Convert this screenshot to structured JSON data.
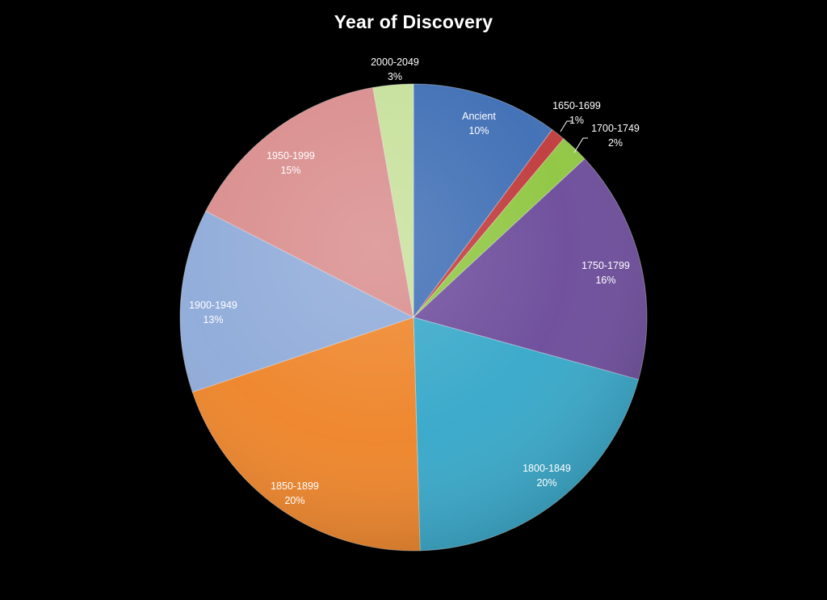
{
  "chart_data": {
    "type": "pie",
    "title": "Year of Discovery",
    "start_angle_deg": 0,
    "direction": "clockwise",
    "slices": [
      {
        "label": "Ancient",
        "percent_label": "10%",
        "value": 10.2,
        "color": "#3d6db4"
      },
      {
        "label": "1650-1699",
        "percent_label": "1%",
        "value": 1.0,
        "color": "#c0393a"
      },
      {
        "label": "1700-1749",
        "percent_label": "2%",
        "value": 2.0,
        "color": "#8ec63f"
      },
      {
        "label": "1750-1799",
        "percent_label": "16%",
        "value": 16.3,
        "color": "#6b4a9a"
      },
      {
        "label": "1800-1849",
        "percent_label": "20%",
        "value": 20.4,
        "color": "#35a7c9"
      },
      {
        "label": "1850-1899",
        "percent_label": "20%",
        "value": 20.4,
        "color": "#ee8327"
      },
      {
        "label": "1900-1949",
        "percent_label": "13%",
        "value": 12.8,
        "color": "#8eaad9"
      },
      {
        "label": "1950-1999",
        "percent_label": "15%",
        "value": 14.8,
        "color": "#d98b8b"
      },
      {
        "label": "2000-2049",
        "percent_label": "3%",
        "value": 2.8,
        "color": "#c6e09a"
      }
    ]
  }
}
